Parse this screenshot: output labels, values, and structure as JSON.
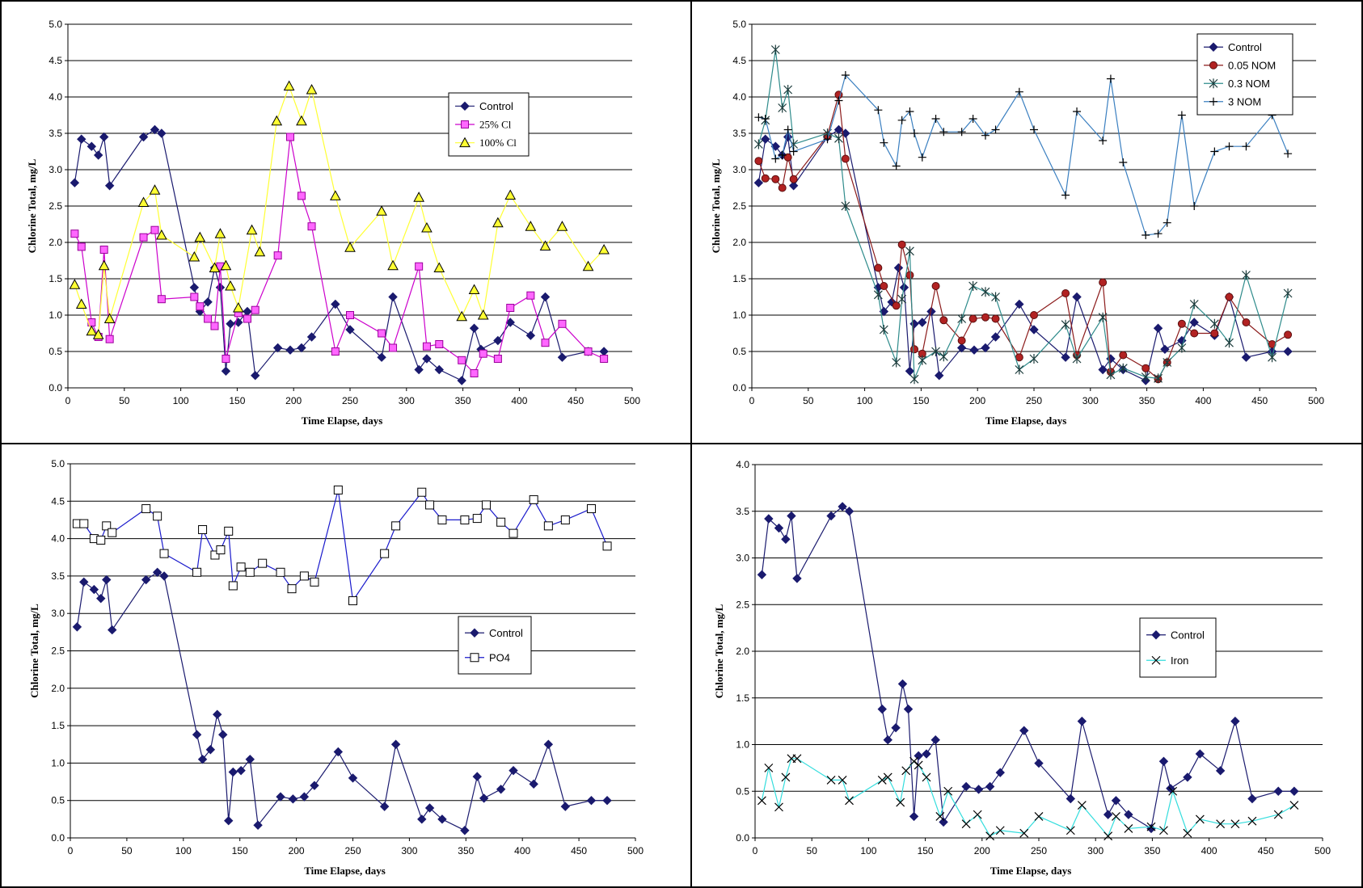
{
  "chart_data": [
    {
      "type": "line",
      "xlabel": "Time Elapse, days",
      "ylabel": "Chlorine Total, mg/L",
      "xlim": [
        0,
        500
      ],
      "ylim": [
        0,
        5.0
      ],
      "xticks": [
        "0",
        "50",
        "100",
        "150",
        "200",
        "250",
        "300",
        "350",
        "400",
        "450",
        "500"
      ],
      "yticks": [
        "0.0",
        "0.5",
        "1.0",
        "1.5",
        "2.0",
        "2.5",
        "3.0",
        "3.5",
        "4.0",
        "4.5",
        "5.0"
      ],
      "grid": "horizontal",
      "legend_position": "upper-middle-right",
      "series": [
        {
          "name": "Control",
          "color": "#1a1a6e",
          "marker": "diamond",
          "x": [
            6,
            12,
            21,
            27,
            32,
            37,
            67,
            77,
            83,
            112,
            117,
            124,
            130,
            135,
            140,
            144,
            151,
            159,
            166,
            186,
            197,
            207,
            216,
            237,
            250,
            278,
            288,
            311,
            318,
            329,
            349,
            360,
            366,
            381,
            392,
            410,
            423,
            438,
            461,
            475
          ],
          "y": [
            2.82,
            3.42,
            3.32,
            3.2,
            3.45,
            2.78,
            3.45,
            3.55,
            3.5,
            1.38,
            1.05,
            1.18,
            1.65,
            1.38,
            0.23,
            0.88,
            0.9,
            1.05,
            0.17,
            0.55,
            0.52,
            0.55,
            0.7,
            1.15,
            0.8,
            0.42,
            1.25,
            0.25,
            0.4,
            0.25,
            0.1,
            0.82,
            0.53,
            0.65,
            0.9,
            0.72,
            1.25,
            0.42,
            0.5,
            0.5
          ]
        },
        {
          "name": "25% Cl",
          "color": "#cc00cc",
          "marker": "square",
          "x": [
            6,
            12,
            21,
            27,
            32,
            37,
            67,
            77,
            83,
            112,
            117,
            124,
            130,
            135,
            140,
            151,
            159,
            166,
            186,
            197,
            207,
            216,
            237,
            250,
            278,
            288,
            311,
            318,
            329,
            349,
            360,
            368,
            381,
            392,
            410,
            423,
            438,
            461,
            475
          ],
          "y": [
            2.12,
            1.94,
            0.9,
            0.7,
            1.9,
            0.67,
            2.07,
            2.17,
            1.22,
            1.25,
            1.12,
            0.95,
            0.85,
            1.67,
            0.4,
            1.03,
            0.95,
            1.07,
            1.82,
            3.45,
            2.64,
            2.22,
            0.5,
            1.0,
            0.75,
            0.55,
            1.67,
            0.57,
            0.6,
            0.38,
            0.2,
            0.47,
            0.4,
            1.1,
            1.27,
            0.62,
            0.88,
            0.5,
            0.4
          ]
        },
        {
          "name": "100% Cl",
          "color": "#ffff33",
          "marker": "triangle",
          "x": [
            6,
            12,
            21,
            27,
            32,
            37,
            67,
            77,
            83,
            112,
            117,
            130,
            135,
            140,
            144,
            151,
            163,
            170,
            185,
            196,
            207,
            216,
            237,
            250,
            278,
            288,
            311,
            318,
            329,
            349,
            360,
            368,
            381,
            392,
            410,
            423,
            438,
            461,
            475
          ],
          "y": [
            1.42,
            1.15,
            0.78,
            0.73,
            1.68,
            0.95,
            2.55,
            2.72,
            2.1,
            1.8,
            2.07,
            1.65,
            2.12,
            1.68,
            1.4,
            1.1,
            2.17,
            1.87,
            3.67,
            4.15,
            3.67,
            4.1,
            2.64,
            1.93,
            2.43,
            1.68,
            2.62,
            2.2,
            1.65,
            0.98,
            1.35,
            1.0,
            2.27,
            2.65,
            2.22,
            1.95,
            2.22,
            1.67,
            1.9
          ]
        }
      ]
    },
    {
      "type": "line",
      "xlabel": "Time Elapse, days",
      "ylabel": "Chlorine Total, mg/L",
      "xlim": [
        0,
        500
      ],
      "ylim": [
        0,
        5.0
      ],
      "xticks": [
        "0",
        "50",
        "100",
        "150",
        "200",
        "250",
        "300",
        "350",
        "400",
        "450",
        "500"
      ],
      "yticks": [
        "0.0",
        "0.5",
        "1.0",
        "1.5",
        "2.0",
        "2.5",
        "3.0",
        "3.5",
        "4.0",
        "4.5",
        "5.0"
      ],
      "grid": "horizontal",
      "legend_position": "top-right",
      "series": [
        {
          "name": "Control",
          "color": "#1a1a6e",
          "marker": "diamond",
          "x": [
            6,
            12,
            21,
            27,
            32,
            37,
            67,
            77,
            83,
            112,
            117,
            124,
            130,
            135,
            140,
            144,
            151,
            159,
            166,
            186,
            197,
            207,
            216,
            237,
            250,
            278,
            288,
            311,
            318,
            329,
            349,
            360,
            366,
            381,
            392,
            410,
            423,
            438,
            461,
            475
          ],
          "y": [
            2.82,
            3.42,
            3.32,
            3.2,
            3.45,
            2.78,
            3.45,
            3.55,
            3.5,
            1.38,
            1.05,
            1.18,
            1.65,
            1.38,
            0.23,
            0.88,
            0.9,
            1.05,
            0.17,
            0.55,
            0.52,
            0.55,
            0.7,
            1.15,
            0.8,
            0.42,
            1.25,
            0.25,
            0.4,
            0.25,
            0.1,
            0.82,
            0.53,
            0.65,
            0.9,
            0.72,
            1.25,
            0.42,
            0.5,
            0.5
          ]
        },
        {
          "name": "0.05 NOM",
          "color": "#8b1a1a",
          "marker": "circle",
          "x": [
            6,
            12,
            21,
            27,
            32,
            37,
            67,
            77,
            83,
            112,
            117,
            128,
            133,
            140,
            144,
            151,
            163,
            170,
            186,
            196,
            207,
            216,
            237,
            250,
            278,
            288,
            311,
            318,
            329,
            349,
            360,
            368,
            381,
            392,
            410,
            423,
            438,
            461,
            475
          ],
          "y": [
            3.12,
            2.88,
            2.87,
            2.75,
            3.17,
            2.87,
            3.47,
            4.03,
            3.15,
            1.65,
            1.4,
            1.13,
            1.97,
            1.55,
            0.53,
            0.47,
            1.4,
            0.93,
            0.65,
            0.95,
            0.97,
            0.95,
            0.42,
            1.0,
            1.3,
            0.45,
            1.45,
            0.22,
            0.45,
            0.27,
            0.12,
            0.35,
            0.88,
            0.75,
            0.75,
            1.25,
            0.9,
            0.6,
            0.73
          ]
        },
        {
          "name": "0.3 NOM",
          "color": "#2e8b8b",
          "marker": "asterisk",
          "x": [
            6,
            12,
            21,
            27,
            32,
            37,
            67,
            77,
            83,
            112,
            117,
            128,
            133,
            140,
            144,
            151,
            163,
            170,
            186,
            196,
            207,
            216,
            237,
            250,
            278,
            288,
            311,
            318,
            329,
            349,
            360,
            368,
            381,
            392,
            410,
            423,
            438,
            461,
            475
          ],
          "y": [
            3.35,
            3.68,
            4.65,
            3.85,
            4.1,
            3.35,
            3.5,
            3.43,
            2.5,
            1.28,
            0.8,
            0.35,
            1.22,
            1.88,
            0.12,
            0.38,
            0.5,
            0.43,
            0.95,
            1.4,
            1.32,
            1.25,
            0.25,
            0.4,
            0.87,
            0.4,
            0.97,
            0.18,
            0.27,
            0.15,
            0.13,
            0.35,
            0.55,
            1.15,
            0.88,
            0.62,
            1.55,
            0.42,
            1.3
          ]
        },
        {
          "name": "3 NOM",
          "color": "#3a7fc0",
          "marker": "plus",
          "x": [
            6,
            12,
            21,
            27,
            32,
            37,
            67,
            77,
            83,
            112,
            117,
            128,
            133,
            140,
            144,
            151,
            163,
            170,
            186,
            196,
            207,
            216,
            237,
            250,
            278,
            288,
            311,
            318,
            329,
            349,
            360,
            368,
            381,
            392,
            410,
            423,
            438,
            461,
            475
          ],
          "y": [
            3.72,
            3.7,
            3.15,
            3.2,
            3.55,
            3.25,
            3.42,
            3.95,
            4.3,
            3.82,
            3.37,
            3.05,
            3.68,
            3.8,
            3.5,
            3.17,
            3.7,
            3.52,
            3.52,
            3.7,
            3.47,
            3.55,
            4.07,
            3.55,
            2.65,
            3.8,
            3.4,
            4.25,
            3.1,
            2.1,
            2.12,
            2.27,
            3.75,
            2.5,
            3.25,
            3.32,
            3.32,
            3.75,
            3.22
          ]
        }
      ]
    },
    {
      "type": "line",
      "xlabel": "Time Elapse, days",
      "ylabel": "Chlorine Total, mg/L",
      "xlim": [
        0,
        500
      ],
      "ylim": [
        0,
        5.0
      ],
      "xticks": [
        "0",
        "50",
        "100",
        "150",
        "200",
        "250",
        "300",
        "350",
        "400",
        "450",
        "500"
      ],
      "yticks": [
        "0.0",
        "0.5",
        "1.0",
        "1.5",
        "2.0",
        "2.5",
        "3.0",
        "3.5",
        "4.0",
        "4.5",
        "5.0"
      ],
      "grid": "horizontal",
      "legend_position": "center-right",
      "series": [
        {
          "name": "Control",
          "color": "#1a1a6e",
          "marker": "diamond",
          "x": [
            6,
            12,
            21,
            27,
            32,
            37,
            67,
            77,
            83,
            112,
            117,
            124,
            130,
            135,
            140,
            144,
            151,
            159,
            166,
            186,
            197,
            207,
            216,
            237,
            250,
            278,
            288,
            311,
            318,
            329,
            349,
            360,
            366,
            381,
            392,
            410,
            423,
            438,
            461,
            475
          ],
          "y": [
            2.82,
            3.42,
            3.32,
            3.2,
            3.45,
            2.78,
            3.45,
            3.55,
            3.5,
            1.38,
            1.05,
            1.18,
            1.65,
            1.38,
            0.23,
            0.88,
            0.9,
            1.05,
            0.17,
            0.55,
            0.52,
            0.55,
            0.7,
            1.15,
            0.8,
            0.42,
            1.25,
            0.25,
            0.4,
            0.25,
            0.1,
            0.82,
            0.53,
            0.65,
            0.9,
            0.72,
            1.25,
            0.42,
            0.5,
            0.5
          ]
        },
        {
          "name": "PO4",
          "color": "#1a1acc",
          "marker": "open-square",
          "x": [
            6,
            12,
            21,
            27,
            32,
            37,
            67,
            77,
            83,
            112,
            117,
            128,
            133,
            140,
            144,
            151,
            159,
            170,
            186,
            196,
            207,
            216,
            237,
            250,
            278,
            288,
            311,
            318,
            329,
            349,
            360,
            368,
            381,
            392,
            410,
            423,
            438,
            461,
            475
          ],
          "y": [
            4.2,
            4.2,
            4.0,
            3.98,
            4.17,
            4.08,
            4.4,
            4.3,
            3.8,
            3.55,
            4.12,
            3.78,
            3.85,
            4.1,
            3.37,
            3.62,
            3.55,
            3.67,
            3.55,
            3.33,
            3.5,
            3.42,
            4.65,
            3.17,
            3.8,
            4.17,
            4.62,
            4.45,
            4.25,
            4.25,
            4.27,
            4.45,
            4.22,
            4.07,
            4.52,
            4.17,
            4.25,
            4.4,
            3.9
          ]
        }
      ]
    },
    {
      "type": "line",
      "xlabel": "Time Elapse, days",
      "ylabel": "Chlorine Total, mg/L",
      "xlim": [
        0,
        500
      ],
      "ylim": [
        0,
        4.0
      ],
      "xticks": [
        "0",
        "50",
        "100",
        "150",
        "200",
        "250",
        "300",
        "350",
        "400",
        "450",
        "500"
      ],
      "yticks": [
        "0.0",
        "0.5",
        "1.0",
        "1.5",
        "2.0",
        "2.5",
        "3.0",
        "3.5",
        "4.0"
      ],
      "grid": "horizontal",
      "legend_position": "center-right",
      "series": [
        {
          "name": "Control",
          "color": "#1a1a6e",
          "marker": "diamond",
          "x": [
            6,
            12,
            21,
            27,
            32,
            37,
            67,
            77,
            83,
            112,
            117,
            124,
            130,
            135,
            140,
            144,
            151,
            159,
            166,
            186,
            197,
            207,
            216,
            237,
            250,
            278,
            288,
            311,
            318,
            329,
            349,
            360,
            366,
            381,
            392,
            410,
            423,
            438,
            461,
            475
          ],
          "y": [
            2.82,
            3.42,
            3.32,
            3.2,
            3.45,
            2.78,
            3.45,
            3.55,
            3.5,
            1.38,
            1.05,
            1.18,
            1.65,
            1.38,
            0.23,
            0.88,
            0.9,
            1.05,
            0.17,
            0.55,
            0.52,
            0.55,
            0.7,
            1.15,
            0.8,
            0.42,
            1.25,
            0.25,
            0.4,
            0.25,
            0.1,
            0.82,
            0.53,
            0.65,
            0.9,
            0.72,
            1.25,
            0.42,
            0.5,
            0.5
          ]
        },
        {
          "name": "Iron",
          "color": "#33dddd",
          "marker": "x",
          "x": [
            6,
            12,
            21,
            27,
            32,
            37,
            67,
            77,
            83,
            112,
            117,
            128,
            133,
            140,
            144,
            151,
            163,
            170,
            186,
            196,
            207,
            216,
            237,
            250,
            278,
            288,
            311,
            318,
            329,
            349,
            360,
            368,
            381,
            392,
            410,
            423,
            438,
            461,
            475
          ],
          "y": [
            0.4,
            0.75,
            0.33,
            0.65,
            0.85,
            0.85,
            0.62,
            0.62,
            0.4,
            0.62,
            0.65,
            0.38,
            0.72,
            0.82,
            0.78,
            0.65,
            0.23,
            0.5,
            0.15,
            0.25,
            0.02,
            0.08,
            0.05,
            0.23,
            0.08,
            0.35,
            0.02,
            0.23,
            0.1,
            0.12,
            0.08,
            0.5,
            0.05,
            0.2,
            0.15,
            0.15,
            0.18,
            0.25,
            0.35
          ]
        }
      ]
    }
  ]
}
